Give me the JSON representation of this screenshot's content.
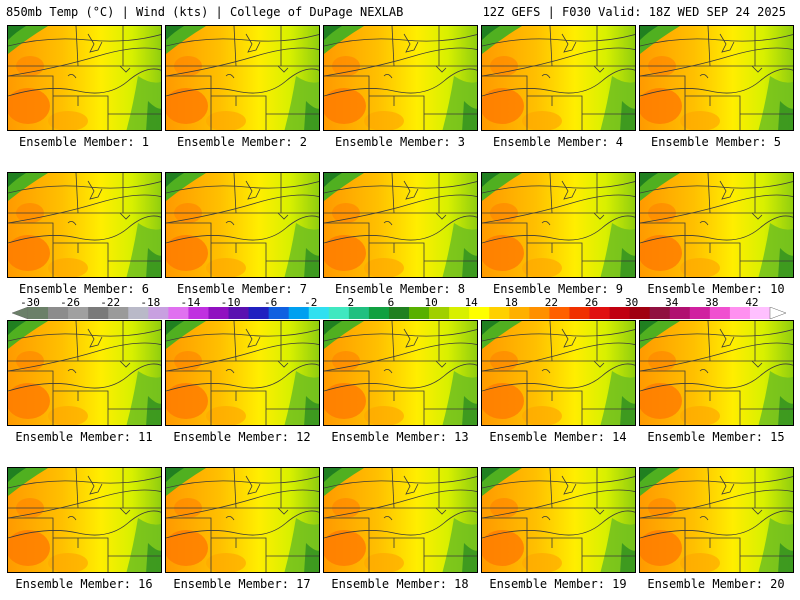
{
  "header": {
    "left": "850mb Temp (°C) | Wind (kts) | College of DuPage NEXLAB",
    "right": "12Z GEFS | F030 Valid: 18Z WED SEP 24 2025"
  },
  "members": [
    "Ensemble Member: 1",
    "Ensemble Member: 2",
    "Ensemble Member: 3",
    "Ensemble Member: 4",
    "Ensemble Member: 5",
    "Ensemble Member: 6",
    "Ensemble Member: 7",
    "Ensemble Member: 8",
    "Ensemble Member: 9",
    "Ensemble Member: 10",
    "Ensemble Member: 11",
    "Ensemble Member: 12",
    "Ensemble Member: 13",
    "Ensemble Member: 14",
    "Ensemble Member: 15",
    "Ensemble Member: 16",
    "Ensemble Member: 17",
    "Ensemble Member: 18",
    "Ensemble Member: 19",
    "Ensemble Member: 20"
  ],
  "colorbar": {
    "ticks": [
      "-30",
      "-26",
      "-22",
      "-18",
      "-14",
      "-10",
      "-6",
      "-2",
      "2",
      "6",
      "10",
      "14",
      "18",
      "22",
      "26",
      "30",
      "34",
      "38",
      "42"
    ],
    "colors": [
      "#6b8068",
      "#8c8c8c",
      "#a0a0a0",
      "#7a7a7a",
      "#9a9a9a",
      "#b9b9c8",
      "#c8a0e0",
      "#e070f0",
      "#c030e0",
      "#9010c0",
      "#5a10b0",
      "#2020c0",
      "#1060e0",
      "#00a0f0",
      "#30e0f0",
      "#40e8c0",
      "#20c080",
      "#10a040",
      "#208020",
      "#58b000",
      "#a0d000",
      "#d8f000",
      "#ffff00",
      "#ffd000",
      "#ffb000",
      "#ff9000",
      "#ff6000",
      "#f03000",
      "#e01010",
      "#c00010",
      "#a00010",
      "#901040",
      "#b01070",
      "#d020a0",
      "#f050d0",
      "#ff90f0",
      "#ffc0ff"
    ]
  }
}
